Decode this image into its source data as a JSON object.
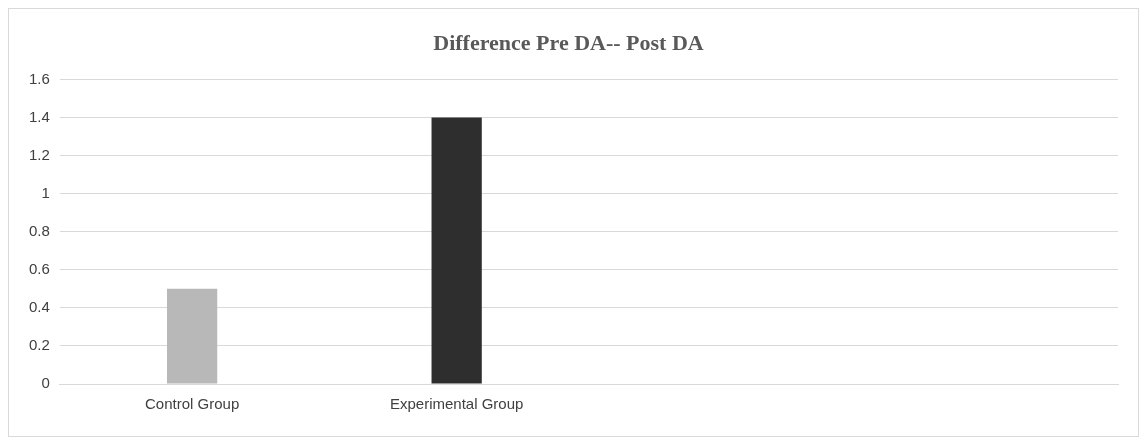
{
  "chart_data": {
    "type": "bar",
    "title": "Difference Pre DA-- Post DA",
    "categories": [
      "Control Group",
      "Experimental Group",
      null,
      null
    ],
    "values": [
      0.5,
      1.4,
      null,
      null
    ],
    "colors": [
      "#b8b8b8",
      "#2e2e2e",
      null,
      null
    ],
    "ylim": [
      0,
      1.6
    ],
    "yticks": [
      0,
      0.2,
      0.4,
      0.6,
      0.8,
      1,
      1.2,
      1.4,
      1.6
    ],
    "grid": "y",
    "legend": false
  }
}
